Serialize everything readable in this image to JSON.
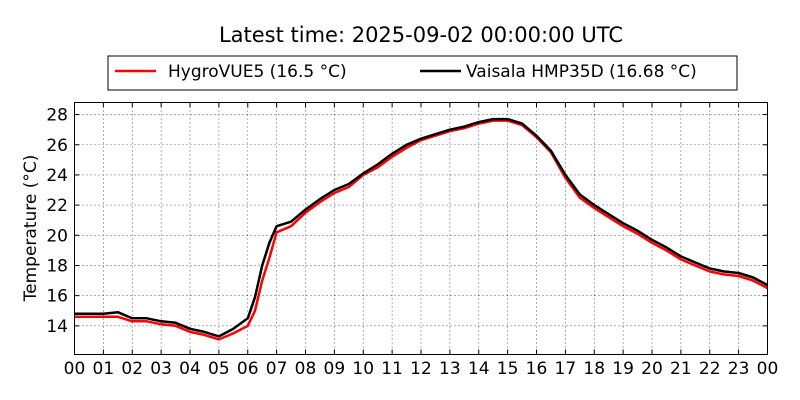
{
  "chart_data": {
    "type": "line",
    "title": "Latest time: 2025-09-02 00:00:00 UTC",
    "xlabel": "",
    "ylabel": "Temperature (°C)",
    "xlim": [
      0,
      24
    ],
    "ylim": [
      12.1,
      28.8
    ],
    "grid": true,
    "legend_position": "top",
    "x_tick_labels": [
      "00",
      "01",
      "02",
      "03",
      "04",
      "05",
      "06",
      "07",
      "08",
      "09",
      "10",
      "11",
      "12",
      "13",
      "14",
      "15",
      "16",
      "17",
      "18",
      "19",
      "20",
      "21",
      "22",
      "23",
      "00"
    ],
    "y_ticks": [
      14,
      16,
      18,
      20,
      22,
      24,
      26,
      28
    ],
    "series": [
      {
        "name": "HygroVUE5 (16.5 °C)",
        "color": "#ff0000",
        "x": [
          0,
          0.5,
          1,
          1.5,
          2,
          2.5,
          3,
          3.5,
          4,
          4.5,
          5,
          5.5,
          6,
          6.25,
          6.5,
          6.75,
          7,
          7.5,
          8,
          8.5,
          9,
          9.5,
          10,
          10.5,
          11,
          11.5,
          12,
          12.5,
          13,
          13.5,
          14,
          14.5,
          15,
          15.5,
          16,
          16.5,
          17,
          17.5,
          18,
          18.5,
          19,
          19.5,
          20,
          20.5,
          21,
          21.5,
          22,
          22.5,
          23,
          23.5,
          24
        ],
        "y": [
          14.6,
          14.6,
          14.6,
          14.6,
          14.3,
          14.3,
          14.1,
          14.0,
          13.6,
          13.4,
          13.1,
          13.5,
          14.0,
          15.0,
          17.0,
          18.5,
          20.2,
          20.6,
          21.5,
          22.2,
          22.8,
          23.2,
          24.0,
          24.5,
          25.2,
          25.8,
          26.3,
          26.6,
          26.9,
          27.1,
          27.4,
          27.6,
          27.6,
          27.3,
          26.5,
          25.5,
          23.8,
          22.5,
          21.8,
          21.2,
          20.6,
          20.1,
          19.5,
          19.0,
          18.4,
          18.0,
          17.6,
          17.4,
          17.3,
          17.0,
          16.5
        ]
      },
      {
        "name": "Vaisala HMP35D (16.68 °C)",
        "color": "#000000",
        "x": [
          0,
          0.5,
          1,
          1.5,
          2,
          2.5,
          3,
          3.5,
          4,
          4.5,
          5,
          5.5,
          6,
          6.25,
          6.5,
          6.75,
          7,
          7.5,
          8,
          8.5,
          9,
          9.5,
          10,
          10.5,
          11,
          11.5,
          12,
          12.5,
          13,
          13.5,
          14,
          14.5,
          15,
          15.5,
          16,
          16.5,
          17,
          17.5,
          18,
          18.5,
          19,
          19.5,
          20,
          20.5,
          21,
          21.5,
          22,
          22.5,
          23,
          23.5,
          24
        ],
        "y": [
          14.8,
          14.8,
          14.8,
          14.9,
          14.5,
          14.5,
          14.3,
          14.2,
          13.8,
          13.6,
          13.3,
          13.8,
          14.5,
          15.9,
          18.0,
          19.5,
          20.6,
          20.9,
          21.7,
          22.4,
          23.0,
          23.4,
          24.1,
          24.7,
          25.4,
          26.0,
          26.4,
          26.7,
          27.0,
          27.2,
          27.5,
          27.7,
          27.7,
          27.4,
          26.6,
          25.6,
          24.0,
          22.7,
          22.0,
          21.4,
          20.8,
          20.3,
          19.7,
          19.2,
          18.6,
          18.2,
          17.8,
          17.6,
          17.5,
          17.2,
          16.7
        ]
      }
    ]
  }
}
